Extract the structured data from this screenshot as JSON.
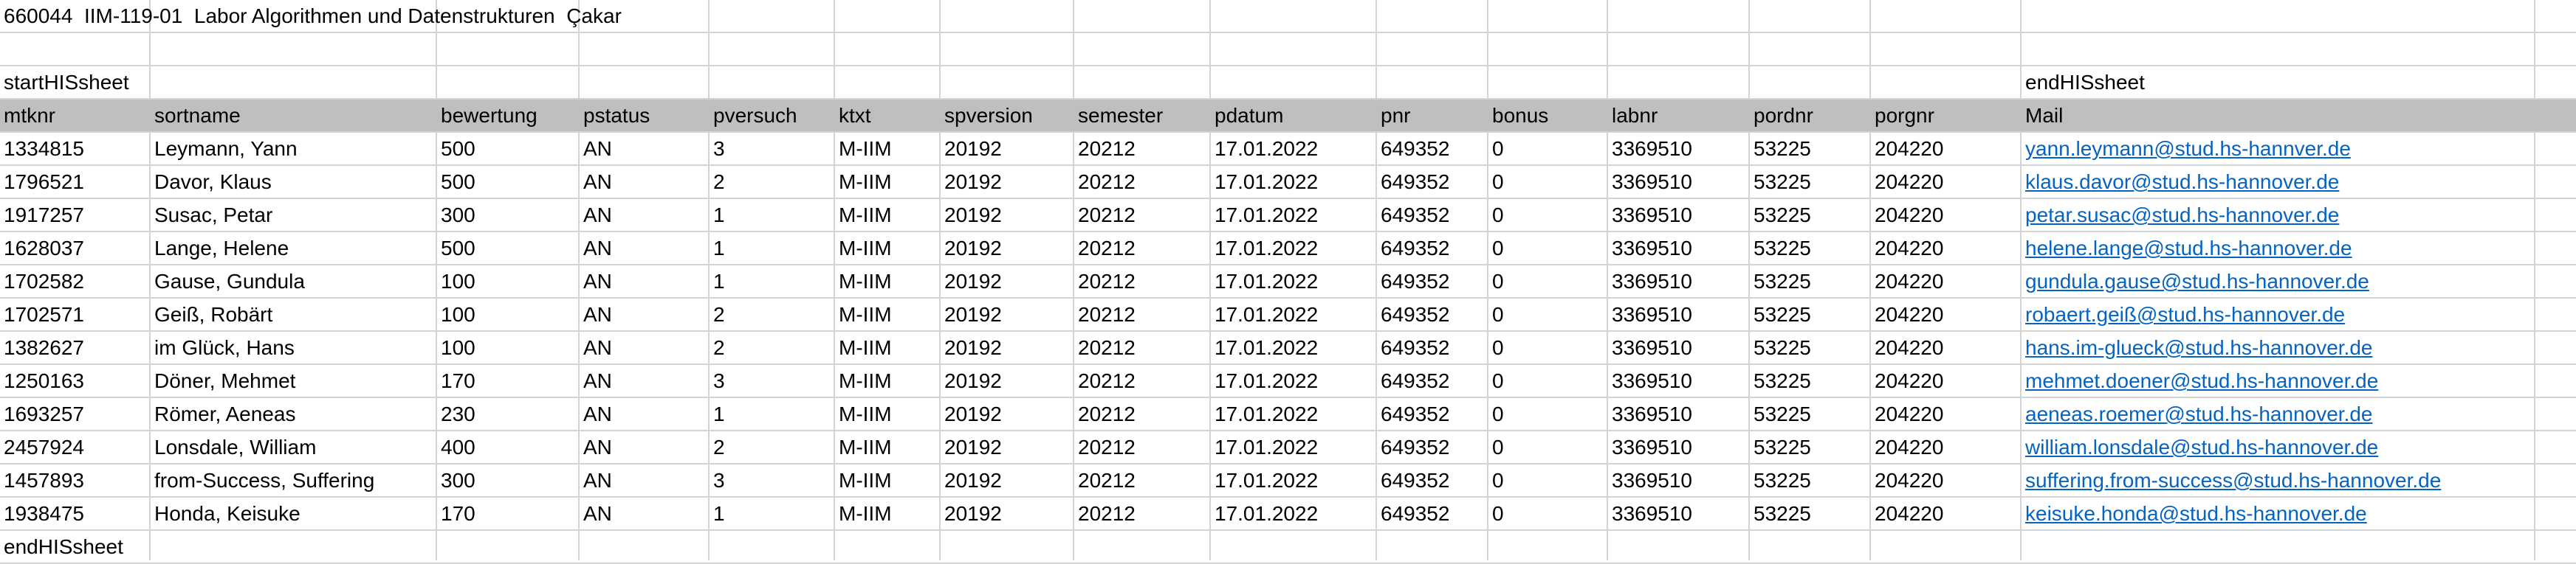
{
  "sheet": {
    "title_row": {
      "course_id": "660044",
      "module": "IIM-119-01",
      "course_name": "Labor Algorithmen und Datenstrukturen",
      "lecturer": "Çakar"
    },
    "start_marker": "startHISsheet",
    "end_marker_right": "endHISsheet",
    "end_marker_bottom": "endHISsheet",
    "headers": [
      "mtknr",
      "sortname",
      "bewertung",
      "pstatus",
      "pversuch",
      "ktxt",
      "spversion",
      "semester",
      "pdatum",
      "pnr",
      "bonus",
      "labnr",
      "pordnr",
      "porgnr",
      "Mail"
    ],
    "rows": [
      [
        "1334815",
        "Leymann, Yann",
        "500",
        "AN",
        "3",
        "M-IIM",
        "20192",
        "20212",
        "17.01.2022",
        "649352",
        "0",
        "3369510",
        "53225",
        "204220",
        "yann.leymann@stud.hs-hannver.de"
      ],
      [
        "1796521",
        "Davor, Klaus",
        "500",
        "AN",
        "2",
        "M-IIM",
        "20192",
        "20212",
        "17.01.2022",
        "649352",
        "0",
        "3369510",
        "53225",
        "204220",
        "klaus.davor@stud.hs-hannover.de"
      ],
      [
        "1917257",
        "Susac, Petar",
        "300",
        "AN",
        "1",
        "M-IIM",
        "20192",
        "20212",
        "17.01.2022",
        "649352",
        "0",
        "3369510",
        "53225",
        "204220",
        "petar.susac@stud.hs-hannover.de"
      ],
      [
        "1628037",
        "Lange, Helene",
        "500",
        "AN",
        "1",
        "M-IIM",
        "20192",
        "20212",
        "17.01.2022",
        "649352",
        "0",
        "3369510",
        "53225",
        "204220",
        "helene.lange@stud.hs-hannover.de"
      ],
      [
        "1702582",
        "Gause, Gundula",
        "100",
        "AN",
        "1",
        "M-IIM",
        "20192",
        "20212",
        "17.01.2022",
        "649352",
        "0",
        "3369510",
        "53225",
        "204220",
        "gundula.gause@stud.hs-hannover.de"
      ],
      [
        "1702571",
        "Geiß, Robärt",
        "100",
        "AN",
        "2",
        "M-IIM",
        "20192",
        "20212",
        "17.01.2022",
        "649352",
        "0",
        "3369510",
        "53225",
        "204220",
        "robaert.geiß@stud.hs-hannover.de"
      ],
      [
        "1382627",
        "im Glück, Hans",
        "100",
        "AN",
        "2",
        "M-IIM",
        "20192",
        "20212",
        "17.01.2022",
        "649352",
        "0",
        "3369510",
        "53225",
        "204220",
        "hans.im-glueck@stud.hs-hannover.de"
      ],
      [
        "1250163",
        "Döner, Mehmet",
        "170",
        "AN",
        "3",
        "M-IIM",
        "20192",
        "20212",
        "17.01.2022",
        "649352",
        "0",
        "3369510",
        "53225",
        "204220",
        "mehmet.doener@stud.hs-hannover.de"
      ],
      [
        "1693257",
        "Römer, Aeneas",
        "230",
        "AN",
        "1",
        "M-IIM",
        "20192",
        "20212",
        "17.01.2022",
        "649352",
        "0",
        "3369510",
        "53225",
        "204220",
        "aeneas.roemer@stud.hs-hannover.de"
      ],
      [
        "2457924",
        "Lonsdale, William",
        "400",
        "AN",
        "2",
        "M-IIM",
        "20192",
        "20212",
        "17.01.2022",
        "649352",
        "0",
        "3369510",
        "53225",
        "204220",
        "william.lonsdale@stud.hs-hannover.de"
      ],
      [
        "1457893",
        "from-Success, Suffering",
        "300",
        "AN",
        "3",
        "M-IIM",
        "20192",
        "20212",
        "17.01.2022",
        "649352",
        "0",
        "3369510",
        "53225",
        "204220",
        "suffering.from-success@stud.hs-hannover.de"
      ],
      [
        "1938475",
        "Honda, Keisuke",
        "170",
        "AN",
        "1",
        "M-IIM",
        "20192",
        "20212",
        "17.01.2022",
        "649352",
        "0",
        "3369510",
        "53225",
        "204220",
        "keisuke.honda@stud.hs-hannover.de"
      ]
    ],
    "colors": {
      "header_bg": "#bfbfbf",
      "gridline": "#d4d4d4",
      "hyperlink": "#0563c1"
    }
  }
}
